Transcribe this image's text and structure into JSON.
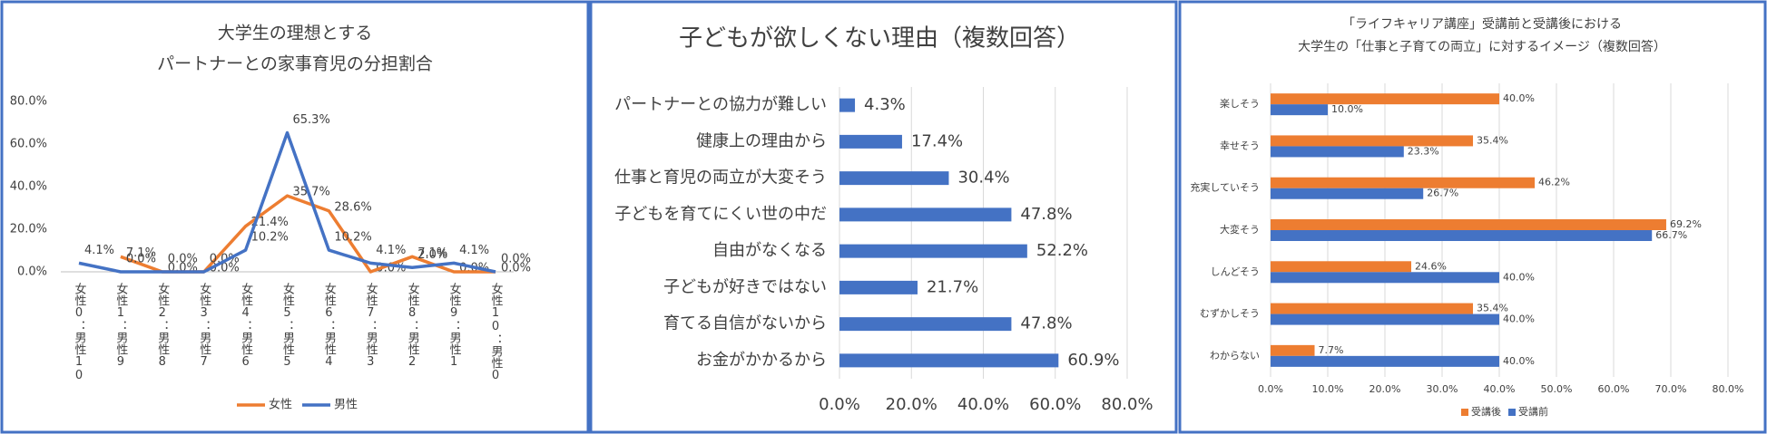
{
  "chart_data": [
    {
      "type": "line",
      "title": [
        "大学生の理想とする",
        "パートナーとの家事育児の分担割合"
      ],
      "categories": [
        "女性0：男性10",
        "女性1：男性9",
        "女性2：男性8",
        "女性3：男性7",
        "女性4：男性6",
        "女性5：男性5",
        "女性6：男性4",
        "女性7：男性3",
        "女性8：男性2",
        "女性9：男性1",
        "女性10：男性0"
      ],
      "series": [
        {
          "name": "女性",
          "color": "#ed7d31",
          "values": [
            null,
            7.1,
            0.0,
            0.0,
            21.4,
            35.7,
            28.6,
            0.0,
            7.1,
            0.0,
            0.0
          ],
          "value_labels": [
            null,
            "7.1%",
            "0.0%",
            "0.0%",
            "21.4%",
            "35.7%",
            "28.6%",
            "0.0%",
            "7.1%",
            "0.0%",
            "0.0%"
          ]
        },
        {
          "name": "男性",
          "color": "#4472c4",
          "values": [
            4.1,
            0.0,
            0.0,
            0.0,
            10.2,
            65.3,
            10.2,
            4.1,
            2.0,
            4.1,
            0.0
          ],
          "value_labels": [
            "4.1%",
            "0.0%",
            "0.0%",
            "0.0%",
            "10.2%",
            "65.3%",
            "10.2%",
            "4.1%",
            "2.0%",
            "4.1%",
            "0.0%"
          ]
        }
      ],
      "ylim": [
        0,
        80
      ],
      "yticks": [
        {
          "value": 0,
          "label": "0.0%"
        },
        {
          "value": 20,
          "label": "20.0%"
        },
        {
          "value": 40,
          "label": "40.0%"
        },
        {
          "value": 60,
          "label": "60.0%"
        },
        {
          "value": 80,
          "label": "80.0%"
        }
      ],
      "grid": false,
      "legend": "bottom"
    },
    {
      "type": "hbar",
      "title": "子どもが欲しくない理由（複数回答）",
      "categories": [
        "パートナーとの協力が難しい",
        "健康上の理由から",
        "仕事と育児の両立が大変そう",
        "子どもを育てにくい世の中だ",
        "自由がなくなる",
        "子どもが好きではない",
        "育てる自信がないから",
        "お金がかかるから"
      ],
      "values": [
        4.3,
        17.4,
        30.4,
        47.8,
        52.2,
        21.7,
        47.8,
        60.9
      ],
      "value_labels": [
        "4.3%",
        "17.4%",
        "30.4%",
        "47.8%",
        "52.2%",
        "21.7%",
        "47.8%",
        "60.9%"
      ],
      "color": "#4472c4",
      "xlim": [
        0,
        80
      ],
      "xticks": [
        {
          "value": 0,
          "label": "0.0%"
        },
        {
          "value": 20,
          "label": "20.0%"
        },
        {
          "value": 40,
          "label": "40.0%"
        },
        {
          "value": 60,
          "label": "60.0%"
        },
        {
          "value": 80,
          "label": "80.0%"
        }
      ],
      "grid": true
    },
    {
      "type": "hbar",
      "title": [
        "「ライフキャリア講座」受講前と受講後における",
        "大学生の「仕事と子育ての両立」に対するイメージ（複数回答）"
      ],
      "categories": [
        "楽しそう",
        "幸せそう",
        "充実していそう",
        "大変そう",
        "しんどそう",
        "むずかしそう",
        "わからない"
      ],
      "series": [
        {
          "name": "受講後",
          "color": "#ed7d31",
          "values": [
            40.0,
            35.4,
            46.2,
            69.2,
            24.6,
            35.4,
            7.7
          ],
          "value_labels": [
            "40.0%",
            "35.4%",
            "46.2%",
            "69.2%",
            "24.6%",
            "35.4%",
            "7.7%"
          ]
        },
        {
          "name": "受講前",
          "color": "#4472c4",
          "values": [
            10.0,
            23.3,
            26.7,
            66.7,
            40.0,
            40.0,
            40.0
          ],
          "value_labels": [
            "10.0%",
            "23.3%",
            "26.7%",
            "66.7%",
            "40.0%",
            "40.0%",
            "40.0%"
          ]
        }
      ],
      "xlim": [
        0,
        80
      ],
      "xticks": [
        {
          "value": 0,
          "label": "0.0%"
        },
        {
          "value": 10,
          "label": "10.0%"
        },
        {
          "value": 20,
          "label": "20.0%"
        },
        {
          "value": 30,
          "label": "30.0%"
        },
        {
          "value": 40,
          "label": "40.0%"
        },
        {
          "value": 50,
          "label": "50.0%"
        },
        {
          "value": 60,
          "label": "60.0%"
        },
        {
          "value": 70,
          "label": "70.0%"
        },
        {
          "value": 80,
          "label": "80.0%"
        }
      ],
      "grid": true,
      "legend": "bottom"
    }
  ]
}
